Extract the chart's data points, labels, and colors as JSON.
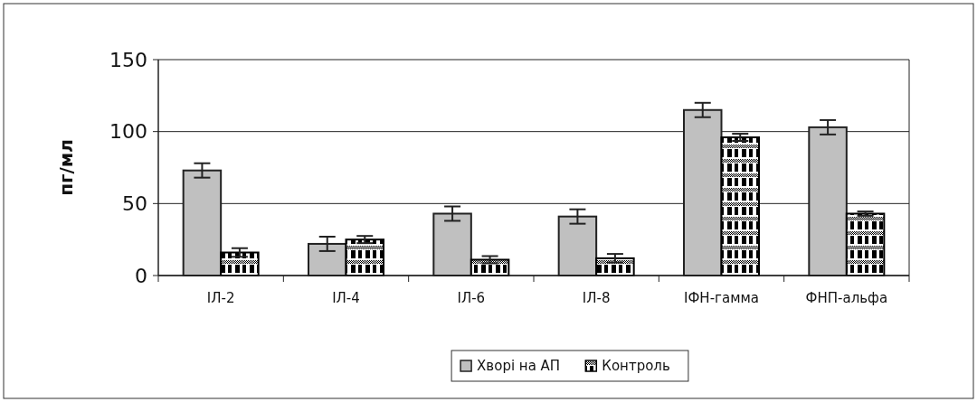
{
  "chart_data": {
    "type": "bar",
    "ylabel": "пг/мл",
    "categories": [
      "ІЛ-2",
      "ІЛ-4",
      "ІЛ-6",
      "ІЛ-8",
      "ІФН-гамма",
      "ФНП-альфа"
    ],
    "series": [
      {
        "name": "Хворі на АП",
        "color": "#c0c0c0",
        "values": [
          73,
          22,
          43,
          41,
          115,
          103
        ],
        "errors": [
          5,
          5,
          5,
          5,
          5,
          5
        ]
      },
      {
        "name": "Контроль",
        "color": "#000000",
        "values": [
          16,
          25,
          11,
          12,
          96,
          43
        ],
        "errors": [
          3,
          2.5,
          2.5,
          3,
          2.5,
          1.5
        ]
      }
    ],
    "ylim": [
      0,
      150
    ],
    "yticks": [
      0,
      50,
      100,
      150
    ],
    "grid": "y",
    "legend": "bottom"
  }
}
